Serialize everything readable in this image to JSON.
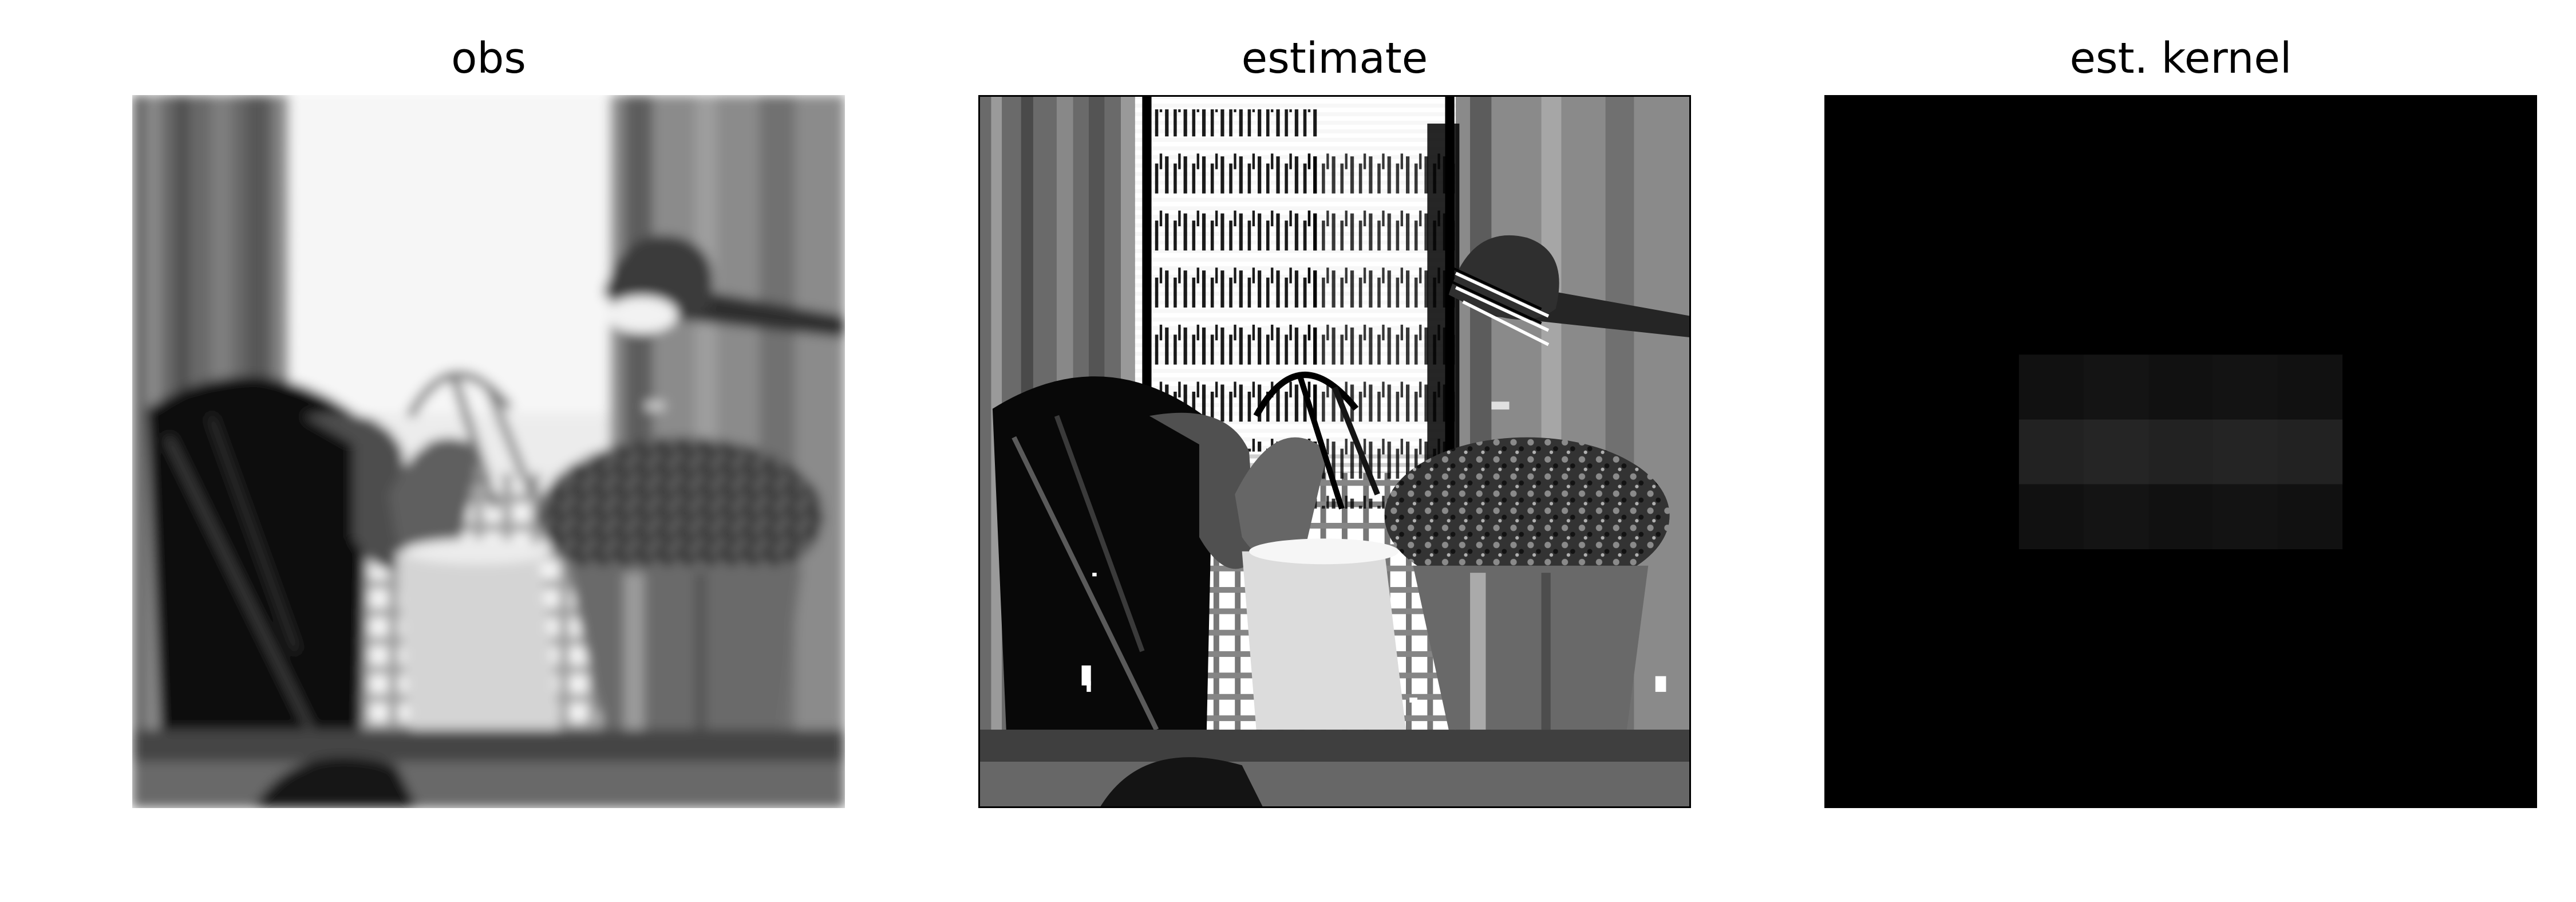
{
  "figure": {
    "panels": [
      {
        "title": "obs",
        "content": "observed blurry grayscale photo"
      },
      {
        "title": "estimate",
        "content": "deblurred grayscale estimate"
      },
      {
        "title": "est. kernel",
        "content": "estimated blur kernel"
      }
    ]
  },
  "colors": {
    "background": "#ffffff",
    "title_text": "#000000",
    "kernel_background": "#000000",
    "kernel_bar_top": "#111111",
    "kernel_bar_middle": "#222222",
    "kernel_bar_bottom": "#111111"
  }
}
